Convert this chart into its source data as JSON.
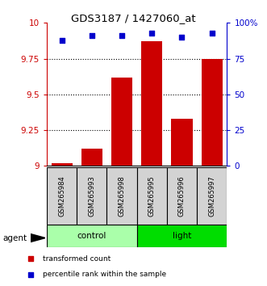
{
  "title": "GDS3187 / 1427060_at",
  "samples": [
    "GSM265984",
    "GSM265993",
    "GSM265998",
    "GSM265995",
    "GSM265996",
    "GSM265997"
  ],
  "bar_values": [
    9.02,
    9.12,
    9.62,
    9.87,
    9.33,
    9.75
  ],
  "percentile_values": [
    88,
    91,
    91,
    93,
    90,
    93
  ],
  "bar_color": "#cc0000",
  "dot_color": "#0000cc",
  "ylim_left": [
    9.0,
    10.0
  ],
  "ylim_right": [
    0,
    100
  ],
  "yticks_left": [
    9.0,
    9.25,
    9.5,
    9.75,
    10.0
  ],
  "yticks_right": [
    0,
    25,
    50,
    75,
    100
  ],
  "ytick_labels_left": [
    "9",
    "9.25",
    "9.5",
    "9.75",
    "10"
  ],
  "ytick_labels_right": [
    "0",
    "25",
    "50",
    "75",
    "100%"
  ],
  "groups": [
    {
      "label": "control",
      "indices": [
        0,
        1,
        2
      ],
      "color": "#aaffaa"
    },
    {
      "label": "light",
      "indices": [
        3,
        4,
        5
      ],
      "color": "#00dd00"
    }
  ],
  "agent_label": "agent",
  "legend_items": [
    {
      "label": "transformed count",
      "color": "#cc0000"
    },
    {
      "label": "percentile rank within the sample",
      "color": "#0000cc"
    }
  ],
  "bar_width": 0.7,
  "background_sample": "#d3d3d3"
}
